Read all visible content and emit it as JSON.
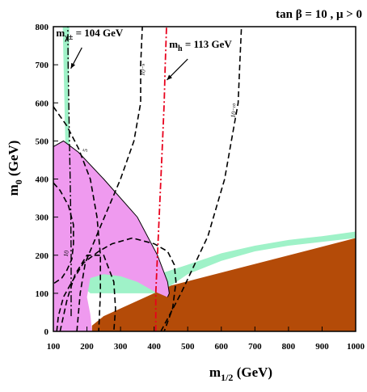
{
  "chart_data": {
    "type": "area",
    "header": "tan β = 10 ,  μ > 0",
    "xlabel": {
      "main": "m",
      "sub": "1/2",
      "unit": " (GeV)"
    },
    "ylabel": {
      "main": "m",
      "sub": "0",
      "unit": " (GeV)"
    },
    "xlim": [
      100,
      1000
    ],
    "ylim": [
      0,
      800
    ],
    "xticks": [
      100,
      200,
      300,
      400,
      500,
      600,
      700,
      800,
      900,
      1000
    ],
    "yticks": [
      0,
      100,
      200,
      300,
      400,
      500,
      600,
      700,
      800
    ],
    "colors": {
      "excluded": "#b44b08",
      "cosmology": "#9ff2c8",
      "g_minus_2": "#ef9aef",
      "higgs": "#e8001c",
      "chargino": "#000000",
      "contour": "#000000"
    },
    "regions": [
      {
        "kind": "excluded",
        "points": [
          [
            215,
            0
          ],
          [
            1000,
            0
          ],
          [
            1000,
            245
          ],
          [
            450,
            120
          ],
          [
            250,
            40
          ],
          [
            215,
            15
          ]
        ]
      },
      {
        "kind": "cosmology",
        "points": [
          [
            128,
            800
          ],
          [
            148,
            800
          ],
          [
            145,
            600
          ],
          [
            150,
            400
          ],
          [
            160,
            300
          ],
          [
            175,
            245
          ],
          [
            230,
            200
          ],
          [
            350,
            150
          ],
          [
            430,
            155
          ],
          [
            500,
            175
          ],
          [
            600,
            205
          ],
          [
            700,
            225
          ],
          [
            800,
            240
          ],
          [
            900,
            250
          ],
          [
            1000,
            262
          ],
          [
            1000,
            245
          ],
          [
            900,
            235
          ],
          [
            800,
            225
          ],
          [
            700,
            210
          ],
          [
            600,
            185
          ],
          [
            500,
            150
          ],
          [
            450,
            120
          ],
          [
            400,
            100
          ],
          [
            350,
            100
          ],
          [
            300,
            100
          ],
          [
            250,
            100
          ],
          [
            210,
            100
          ],
          [
            185,
            120
          ],
          [
            160,
            160
          ],
          [
            150,
            210
          ],
          [
            140,
            250
          ],
          [
            138,
            400
          ],
          [
            133,
            600
          ],
          [
            128,
            800
          ]
        ]
      },
      {
        "kind": "g_minus_2",
        "points": [
          [
            100,
            485
          ],
          [
            130,
            500
          ],
          [
            175,
            470
          ],
          [
            250,
            400
          ],
          [
            350,
            300
          ],
          [
            410,
            200
          ],
          [
            440,
            130
          ],
          [
            445,
            100
          ],
          [
            440,
            90
          ],
          [
            400,
            105
          ],
          [
            350,
            130
          ],
          [
            300,
            145
          ],
          [
            250,
            150
          ],
          [
            210,
            140
          ],
          [
            200,
            90
          ],
          [
            210,
            45
          ],
          [
            215,
            0
          ],
          [
            100,
            0
          ]
        ]
      }
    ],
    "lines": [
      {
        "name": "mχ± = 104 GeV",
        "points": [
          [
            153,
            40
          ],
          [
            153,
            200
          ],
          [
            152,
            300
          ],
          [
            150,
            400
          ],
          [
            148,
            500
          ],
          [
            146,
            600
          ],
          [
            144,
            700
          ],
          [
            143,
            800
          ]
        ]
      },
      {
        "name": "mh = 113 GeV",
        "points": [
          [
            405,
            0
          ],
          [
            405,
            100
          ],
          [
            410,
            200
          ],
          [
            415,
            300
          ],
          [
            420,
            400
          ],
          [
            425,
            500
          ],
          [
            430,
            600
          ],
          [
            433,
            700
          ],
          [
            437,
            800
          ]
        ]
      },
      {
        "name": "",
        "points": [
          [
            100,
            590
          ],
          [
            140,
            540
          ],
          [
            175,
            480
          ],
          [
            210,
            400
          ],
          [
            230,
            300
          ],
          [
            240,
            200
          ],
          [
            240,
            100
          ],
          [
            235,
            0
          ]
        ]
      },
      {
        "name": "",
        "points": [
          [
            170,
            0
          ],
          [
            180,
            100
          ],
          [
            195,
            180
          ],
          [
            240,
            275
          ],
          [
            300,
            400
          ],
          [
            340,
            500
          ],
          [
            360,
            600
          ],
          [
            360,
            700
          ],
          [
            365,
            800
          ]
        ]
      },
      {
        "name": "",
        "points": [
          [
            420,
            0
          ],
          [
            480,
            100
          ],
          [
            560,
            250
          ],
          [
            610,
            400
          ],
          [
            630,
            500
          ],
          [
            650,
            600
          ],
          [
            655,
            700
          ],
          [
            660,
            800
          ]
        ]
      },
      {
        "name": "",
        "points": [
          [
            110,
            0
          ],
          [
            115,
            40
          ],
          [
            130,
            90
          ],
          [
            155,
            130
          ],
          [
            190,
            180
          ],
          [
            235,
            210
          ],
          [
            275,
            230
          ],
          [
            335,
            245
          ],
          [
            400,
            230
          ],
          [
            440,
            210
          ],
          [
            460,
            175
          ],
          [
            465,
            130
          ],
          [
            455,
            60
          ],
          [
            430,
            0
          ]
        ]
      },
      {
        "name": "",
        "points": [
          [
            120,
            0
          ],
          [
            130,
            40
          ],
          [
            140,
            80
          ],
          [
            150,
            110
          ],
          [
            165,
            150
          ],
          [
            200,
            200
          ],
          [
            250,
            200
          ],
          [
            280,
            130
          ],
          [
            285,
            60
          ],
          [
            280,
            0
          ]
        ]
      },
      {
        "name": "",
        "points": [
          [
            100,
            390
          ],
          [
            120,
            370
          ],
          [
            145,
            330
          ],
          [
            160,
            280
          ],
          [
            160,
            230
          ],
          [
            155,
            190
          ],
          [
            140,
            160
          ],
          [
            125,
            140
          ],
          [
            100,
            125
          ]
        ]
      }
    ],
    "contour_labels": [
      {
        "text": "10⁻⁹",
        "x": 370,
        "y": 670
      },
      {
        "text": "10⁻¹⁰",
        "x": 640,
        "y": 560
      },
      {
        "text": "5",
        "x": 200,
        "y": 470
      },
      {
        "text": "10",
        "x": 142,
        "y": 195
      }
    ],
    "annotations": [
      {
        "label": {
          "main": "m",
          "sub": "χ±",
          "value": " = 104 GeV"
        },
        "text_x": 208,
        "text_y": 775,
        "arrow_from": [
          185,
          745
        ],
        "arrow_to": [
          152,
          690
        ]
      },
      {
        "label": {
          "main": "m",
          "sub": "h",
          "value": "  = 113 GeV"
        },
        "text_x": 538,
        "text_y": 745,
        "arrow_from": [
          500,
          715
        ],
        "arrow_to": [
          438,
          660
        ]
      }
    ]
  }
}
